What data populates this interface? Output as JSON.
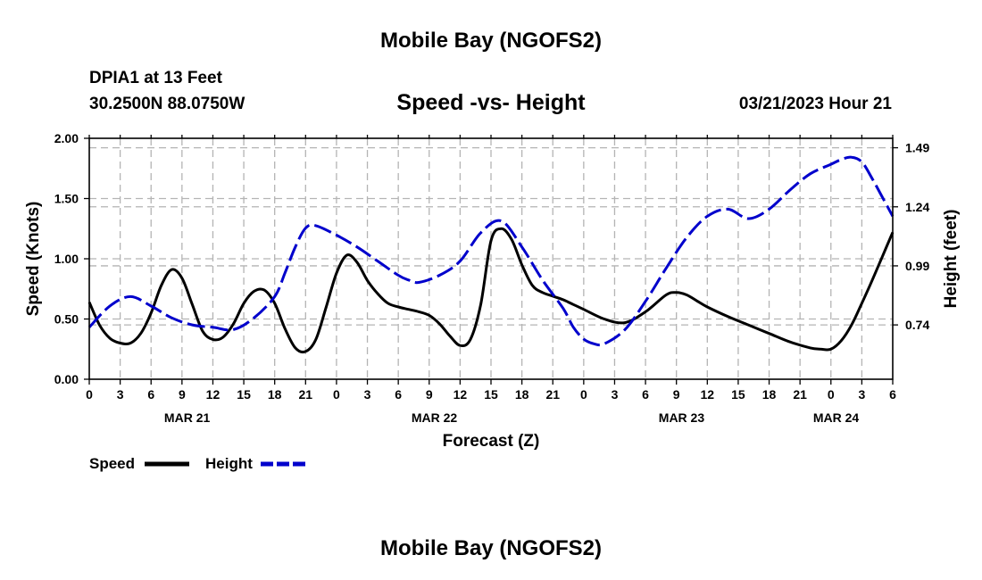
{
  "page": {
    "title_top": "Mobile Bay (NGOFS2)",
    "title_bottom": "Mobile Bay (NGOFS2)",
    "station_line": "DPIA1 at 13 Feet",
    "coords_line": "30.2500N  88.0750W",
    "datetime_line": "03/21/2023 Hour 21"
  },
  "chart_data": {
    "type": "line",
    "title": "Speed -vs- Height",
    "xlabel": "Forecast (Z)",
    "ylabel": "Speed (Knots)",
    "ylabel_right": "Height (feet)",
    "x_hours_range": [
      0,
      78
    ],
    "ylim": [
      0,
      2
    ],
    "ylim_right": [
      0.51,
      1.53
    ],
    "y_ticks": [
      "0.00",
      "0.50",
      "1.00",
      "1.50",
      "2.00"
    ],
    "y_tick_values": [
      0,
      0.5,
      1.0,
      1.5,
      2.0
    ],
    "y_right_ticks": [
      "0.74",
      "0.99",
      "1.24",
      "1.49"
    ],
    "y_right_tick_values": [
      0.74,
      0.99,
      1.24,
      1.49
    ],
    "x_tick_labels": [
      "0",
      "3",
      "6",
      "9",
      "12",
      "15",
      "18",
      "21",
      "0",
      "3",
      "6",
      "9",
      "12",
      "15",
      "18",
      "21",
      "0",
      "3",
      "6",
      "9",
      "12",
      "15",
      "18",
      "21",
      "0",
      "3",
      "6"
    ],
    "day_labels": [
      {
        "label": "MAR 21",
        "hour": 9.5
      },
      {
        "label": "MAR 22",
        "hour": 33.5
      },
      {
        "label": "MAR 23",
        "hour": 57.5
      },
      {
        "label": "MAR 24",
        "hour": 72.5
      }
    ],
    "grid": true,
    "legend": "bottom-left",
    "series": [
      {
        "name": "Speed",
        "axis": "left",
        "color": "#000000",
        "style": "solid",
        "x": [
          0,
          1,
          2,
          3,
          4,
          5,
          6,
          7,
          8,
          9,
          10,
          11,
          12,
          13,
          14,
          15,
          16,
          17,
          18,
          19,
          20,
          21,
          22,
          23,
          24,
          25,
          26,
          27,
          28,
          29,
          30,
          31,
          32,
          33,
          34,
          35,
          36,
          37,
          38,
          39,
          40,
          41,
          42,
          43,
          44,
          45,
          46,
          47,
          48,
          50,
          52,
          54,
          56,
          57,
          58,
          59,
          60,
          62,
          64,
          66,
          68,
          70,
          71,
          72,
          73,
          74,
          75,
          76,
          77,
          78
        ],
        "values": [
          0.64,
          0.45,
          0.34,
          0.3,
          0.3,
          0.38,
          0.55,
          0.78,
          0.91,
          0.84,
          0.62,
          0.4,
          0.33,
          0.35,
          0.46,
          0.63,
          0.73,
          0.74,
          0.63,
          0.42,
          0.26,
          0.23,
          0.33,
          0.6,
          0.88,
          1.03,
          0.97,
          0.82,
          0.71,
          0.63,
          0.6,
          0.58,
          0.56,
          0.53,
          0.46,
          0.36,
          0.28,
          0.33,
          0.62,
          1.15,
          1.25,
          1.16,
          0.95,
          0.78,
          0.72,
          0.69,
          0.66,
          0.62,
          0.58,
          0.5,
          0.47,
          0.56,
          0.7,
          0.72,
          0.7,
          0.65,
          0.6,
          0.52,
          0.45,
          0.38,
          0.31,
          0.26,
          0.25,
          0.25,
          0.32,
          0.45,
          0.63,
          0.82,
          1.02,
          1.22
        ]
      },
      {
        "name": "Height",
        "axis": "right",
        "color": "#0000cc",
        "style": "dashed",
        "x": [
          0,
          2,
          4,
          6,
          8,
          10,
          12,
          14,
          16,
          18,
          19,
          20,
          21,
          22,
          24,
          26,
          28,
          30,
          31,
          32,
          34,
          36,
          38,
          40,
          42,
          44,
          46,
          47,
          48,
          49,
          50,
          52,
          54,
          56,
          58,
          60,
          62,
          64,
          66,
          68,
          70,
          72,
          73,
          74,
          75,
          76,
          77,
          78
        ],
        "values": [
          0.73,
          0.82,
          0.86,
          0.82,
          0.77,
          0.74,
          0.73,
          0.72,
          0.77,
          0.86,
          0.96,
          1.07,
          1.15,
          1.16,
          1.12,
          1.07,
          1.01,
          0.95,
          0.93,
          0.92,
          0.95,
          1.01,
          1.13,
          1.18,
          1.07,
          0.93,
          0.81,
          0.73,
          0.68,
          0.66,
          0.66,
          0.72,
          0.84,
          0.98,
          1.11,
          1.2,
          1.23,
          1.19,
          1.23,
          1.31,
          1.38,
          1.42,
          1.44,
          1.45,
          1.43,
          1.36,
          1.28,
          1.2
        ]
      }
    ]
  }
}
